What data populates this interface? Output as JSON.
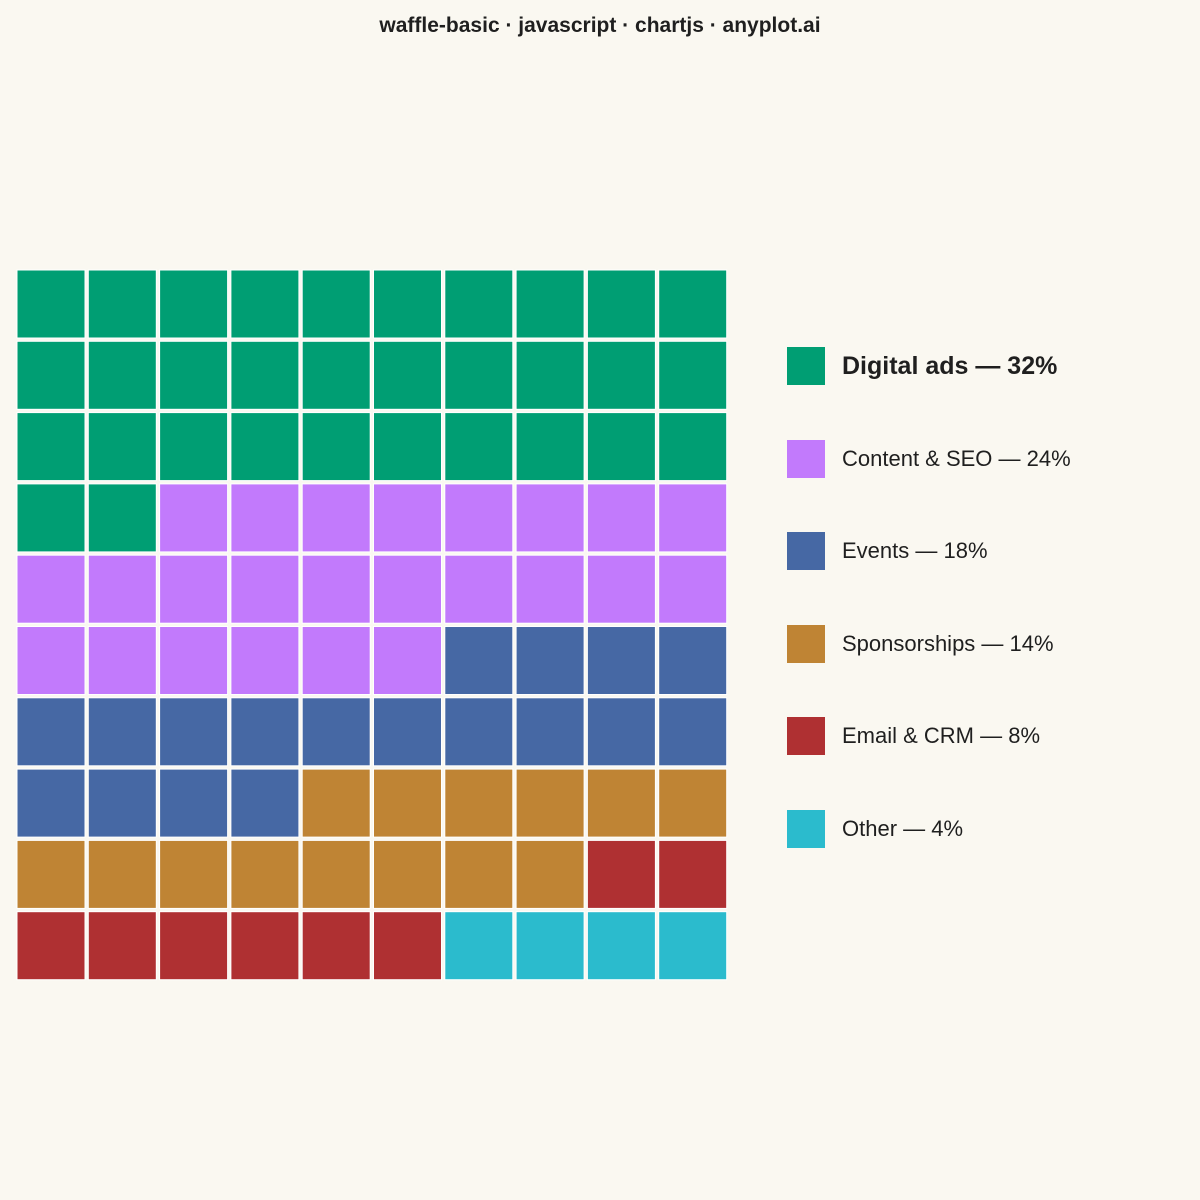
{
  "chart_data": {
    "type": "waffle",
    "title": "waffle-basic · javascript · chartjs · anyplot.ai",
    "grid": {
      "rows": 10,
      "columns": 10,
      "total_cells": 100
    },
    "categories": [
      "Digital ads",
      "Content & SEO",
      "Events",
      "Sponsorships",
      "Email & CRM",
      "Other"
    ],
    "values": [
      32,
      24,
      18,
      14,
      8,
      4
    ],
    "unit": "%",
    "colors": [
      "#009E73",
      "#C27AFC",
      "#4668A4",
      "#BF8434",
      "#AF3032",
      "#2BBBCD"
    ],
    "legend": {
      "placement": "right",
      "entries": [
        {
          "label": "Digital ads — 32%",
          "color": "#009E73",
          "emphasis": true
        },
        {
          "label": "Content & SEO — 24%",
          "color": "#C27AFC",
          "emphasis": false
        },
        {
          "label": "Events — 18%",
          "color": "#4668A4",
          "emphasis": false
        },
        {
          "label": "Sponsorships — 14%",
          "color": "#BF8434",
          "emphasis": false
        },
        {
          "label": "Email & CRM — 8%",
          "color": "#AF3032",
          "emphasis": false
        },
        {
          "label": "Other — 4%",
          "color": "#2BBBCD",
          "emphasis": false
        }
      ]
    },
    "background_color": "#FAF8F1",
    "cell_gap_color": "#FFFFFF"
  }
}
